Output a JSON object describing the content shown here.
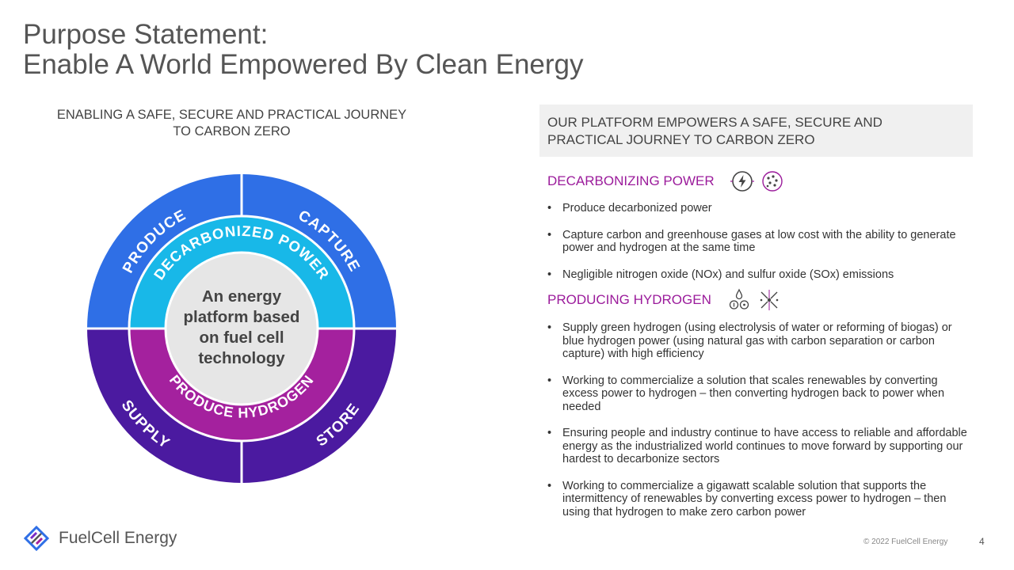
{
  "title": {
    "line1": "Purpose Statement:",
    "line2": "Enable A World Empowered By Clean Energy"
  },
  "left": {
    "subtitle_line1": "ENABLING A SAFE, SECURE AND PRACTICAL JOURNEY",
    "subtitle_line2": "TO CARBON ZERO"
  },
  "wheel": {
    "outer_labels": [
      "PRODUCE",
      "CAPTURE",
      "SUPPLY",
      "STORE"
    ],
    "ring_top": "DECARBONIZED POWER",
    "ring_bottom": "PRODUCE HYDROGEN",
    "center_lines": [
      "An energy",
      "platform based",
      "on fuel cell",
      "technology"
    ],
    "colors": {
      "outer_top": "#2f6fe6",
      "outer_bottom": "#4b1aa0",
      "ring_top": "#18b8e8",
      "ring_bottom": "#a4219e",
      "center": "#e6e6e6"
    }
  },
  "panel": {
    "header_line1": "OUR PLATFORM EMPOWERS A SAFE, SECURE AND",
    "header_line2": "PRACTICAL JOURNEY TO CARBON ZERO",
    "section1": {
      "title": "DECARBONIZING POWER",
      "icons": [
        "lightning-icon",
        "particles-icon"
      ],
      "bullets": [
        "Produce decarbonized power",
        "Capture carbon and greenhouse gases at low cost with the ability to generate power and hydrogen at the same time",
        "Negligible nitrogen oxide (NOx) and sulfur oxide (SOx) emissions"
      ]
    },
    "section2": {
      "title": "PRODUCING HYDROGEN",
      "icons": [
        "droplets-icon",
        "molecule-icon"
      ],
      "bullets": [
        "Supply green hydrogen (using electrolysis of water or reforming of biogas) or blue hydrogen power (using natural gas with carbon separation or carbon capture) with high efficiency",
        "Working to commercialize a solution that scales renewables by converting excess power to hydrogen – then converting hydrogen back to power when needed",
        "Ensuring people and industry continue to have access to reliable and affordable energy as the industrialized world continues to move forward by supporting our hardest to decarbonize sectors",
        "Working to commercialize a gigawatt scalable solution that supports the intermittency of renewables by converting excess power to hydrogen – then using that hydrogen to make zero carbon power"
      ]
    },
    "accent_color": "#9b1b9b"
  },
  "footer": {
    "company": "FuelCell Energy",
    "copyright": "© 2022 FuelCell Energy",
    "page_number": "4"
  }
}
